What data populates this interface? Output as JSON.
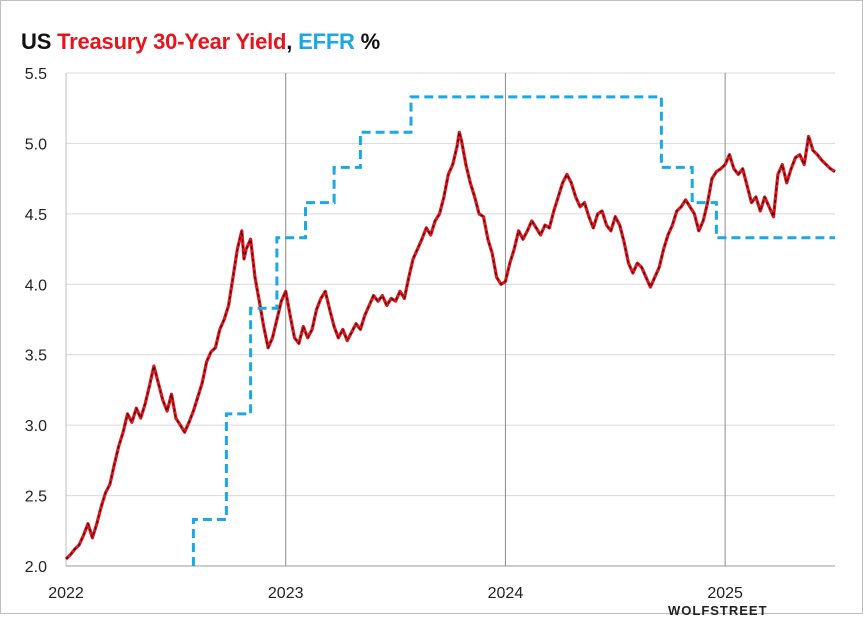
{
  "title": {
    "part1": "US ",
    "part2": "Treasury 30-Year Yield",
    "part3": ", ",
    "part4": "EFFR",
    "part5": " %",
    "color_black": "#111111",
    "color_red": "#e8141c",
    "color_blue": "#1aa9e6"
  },
  "watermark": "WOLFSTREET",
  "chart_data": {
    "type": "line",
    "title": "US Treasury 30-Year Yield, EFFR %",
    "xlabel": "",
    "ylabel": "",
    "xlim": [
      2022.0,
      2025.5
    ],
    "ylim": [
      2.0,
      5.5
    ],
    "y_ticks": [
      "2.0",
      "2.5",
      "3.0",
      "3.5",
      "4.0",
      "4.5",
      "5.0",
      "5.5"
    ],
    "x_ticks": [
      {
        "label": "2022",
        "x": 2022.0
      },
      {
        "label": "2023",
        "x": 2023.0
      },
      {
        "label": "2024",
        "x": 2024.0
      },
      {
        "label": "2025",
        "x": 2025.0
      }
    ],
    "grid": {
      "horizontal": true,
      "vertical_year_lines": true
    },
    "series": [
      {
        "name": "Treasury 30-Year Yield",
        "style": "solid-red-with-black-dash",
        "color": "#e8141c",
        "points": [
          [
            2022.0,
            2.05
          ],
          [
            2022.02,
            2.08
          ],
          [
            2022.04,
            2.12
          ],
          [
            2022.06,
            2.15
          ],
          [
            2022.08,
            2.22
          ],
          [
            2022.1,
            2.3
          ],
          [
            2022.12,
            2.2
          ],
          [
            2022.14,
            2.3
          ],
          [
            2022.16,
            2.42
          ],
          [
            2022.18,
            2.52
          ],
          [
            2022.2,
            2.58
          ],
          [
            2022.22,
            2.72
          ],
          [
            2022.24,
            2.85
          ],
          [
            2022.26,
            2.95
          ],
          [
            2022.28,
            3.08
          ],
          [
            2022.3,
            3.02
          ],
          [
            2022.32,
            3.12
          ],
          [
            2022.34,
            3.05
          ],
          [
            2022.36,
            3.15
          ],
          [
            2022.38,
            3.28
          ],
          [
            2022.4,
            3.42
          ],
          [
            2022.42,
            3.3
          ],
          [
            2022.44,
            3.18
          ],
          [
            2022.46,
            3.1
          ],
          [
            2022.48,
            3.22
          ],
          [
            2022.5,
            3.05
          ],
          [
            2022.52,
            3.0
          ],
          [
            2022.54,
            2.95
          ],
          [
            2022.56,
            3.02
          ],
          [
            2022.58,
            3.1
          ],
          [
            2022.6,
            3.2
          ],
          [
            2022.62,
            3.3
          ],
          [
            2022.64,
            3.45
          ],
          [
            2022.66,
            3.52
          ],
          [
            2022.68,
            3.55
          ],
          [
            2022.7,
            3.68
          ],
          [
            2022.72,
            3.75
          ],
          [
            2022.74,
            3.85
          ],
          [
            2022.76,
            4.05
          ],
          [
            2022.78,
            4.25
          ],
          [
            2022.8,
            4.38
          ],
          [
            2022.81,
            4.18
          ],
          [
            2022.82,
            4.25
          ],
          [
            2022.84,
            4.32
          ],
          [
            2022.86,
            4.05
          ],
          [
            2022.88,
            3.88
          ],
          [
            2022.9,
            3.7
          ],
          [
            2022.92,
            3.55
          ],
          [
            2022.94,
            3.62
          ],
          [
            2022.96,
            3.75
          ],
          [
            2022.98,
            3.88
          ],
          [
            2023.0,
            3.95
          ],
          [
            2023.02,
            3.78
          ],
          [
            2023.04,
            3.62
          ],
          [
            2023.06,
            3.58
          ],
          [
            2023.08,
            3.7
          ],
          [
            2023.1,
            3.62
          ],
          [
            2023.12,
            3.68
          ],
          [
            2023.14,
            3.82
          ],
          [
            2023.16,
            3.9
          ],
          [
            2023.18,
            3.95
          ],
          [
            2023.2,
            3.82
          ],
          [
            2023.22,
            3.7
          ],
          [
            2023.24,
            3.62
          ],
          [
            2023.26,
            3.68
          ],
          [
            2023.28,
            3.6
          ],
          [
            2023.3,
            3.66
          ],
          [
            2023.32,
            3.72
          ],
          [
            2023.34,
            3.68
          ],
          [
            2023.36,
            3.78
          ],
          [
            2023.38,
            3.85
          ],
          [
            2023.4,
            3.92
          ],
          [
            2023.42,
            3.88
          ],
          [
            2023.44,
            3.92
          ],
          [
            2023.46,
            3.85
          ],
          [
            2023.48,
            3.9
          ],
          [
            2023.5,
            3.88
          ],
          [
            2023.52,
            3.95
          ],
          [
            2023.54,
            3.9
          ],
          [
            2023.56,
            4.05
          ],
          [
            2023.58,
            4.18
          ],
          [
            2023.6,
            4.25
          ],
          [
            2023.62,
            4.32
          ],
          [
            2023.64,
            4.4
          ],
          [
            2023.66,
            4.35
          ],
          [
            2023.68,
            4.45
          ],
          [
            2023.7,
            4.5
          ],
          [
            2023.72,
            4.62
          ],
          [
            2023.74,
            4.78
          ],
          [
            2023.76,
            4.85
          ],
          [
            2023.78,
            4.98
          ],
          [
            2023.79,
            5.08
          ],
          [
            2023.8,
            5.02
          ],
          [
            2023.82,
            4.85
          ],
          [
            2023.84,
            4.72
          ],
          [
            2023.86,
            4.62
          ],
          [
            2023.88,
            4.5
          ],
          [
            2023.9,
            4.48
          ],
          [
            2023.92,
            4.32
          ],
          [
            2023.94,
            4.22
          ],
          [
            2023.96,
            4.05
          ],
          [
            2023.98,
            4.0
          ],
          [
            2024.0,
            4.02
          ],
          [
            2024.02,
            4.15
          ],
          [
            2024.04,
            4.25
          ],
          [
            2024.06,
            4.38
          ],
          [
            2024.08,
            4.32
          ],
          [
            2024.1,
            4.38
          ],
          [
            2024.12,
            4.45
          ],
          [
            2024.14,
            4.4
          ],
          [
            2024.16,
            4.35
          ],
          [
            2024.18,
            4.42
          ],
          [
            2024.2,
            4.4
          ],
          [
            2024.22,
            4.52
          ],
          [
            2024.24,
            4.62
          ],
          [
            2024.26,
            4.72
          ],
          [
            2024.28,
            4.78
          ],
          [
            2024.3,
            4.72
          ],
          [
            2024.32,
            4.62
          ],
          [
            2024.34,
            4.55
          ],
          [
            2024.36,
            4.58
          ],
          [
            2024.38,
            4.48
          ],
          [
            2024.4,
            4.4
          ],
          [
            2024.42,
            4.5
          ],
          [
            2024.44,
            4.52
          ],
          [
            2024.46,
            4.42
          ],
          [
            2024.48,
            4.38
          ],
          [
            2024.5,
            4.48
          ],
          [
            2024.52,
            4.42
          ],
          [
            2024.54,
            4.3
          ],
          [
            2024.56,
            4.15
          ],
          [
            2024.58,
            4.08
          ],
          [
            2024.6,
            4.15
          ],
          [
            2024.62,
            4.12
          ],
          [
            2024.64,
            4.05
          ],
          [
            2024.66,
            3.98
          ],
          [
            2024.68,
            4.05
          ],
          [
            2024.7,
            4.12
          ],
          [
            2024.72,
            4.25
          ],
          [
            2024.74,
            4.35
          ],
          [
            2024.76,
            4.42
          ],
          [
            2024.78,
            4.52
          ],
          [
            2024.8,
            4.55
          ],
          [
            2024.82,
            4.6
          ],
          [
            2024.84,
            4.55
          ],
          [
            2024.86,
            4.5
          ],
          [
            2024.88,
            4.38
          ],
          [
            2024.9,
            4.45
          ],
          [
            2024.92,
            4.58
          ],
          [
            2024.94,
            4.75
          ],
          [
            2024.96,
            4.8
          ],
          [
            2024.98,
            4.82
          ],
          [
            2025.0,
            4.85
          ],
          [
            2025.02,
            4.92
          ],
          [
            2025.04,
            4.82
          ],
          [
            2025.06,
            4.78
          ],
          [
            2025.08,
            4.82
          ],
          [
            2025.1,
            4.7
          ],
          [
            2025.12,
            4.58
          ],
          [
            2025.14,
            4.62
          ],
          [
            2025.16,
            4.52
          ],
          [
            2025.18,
            4.62
          ],
          [
            2025.2,
            4.55
          ],
          [
            2025.22,
            4.48
          ],
          [
            2025.24,
            4.78
          ],
          [
            2025.26,
            4.85
          ],
          [
            2025.28,
            4.72
          ],
          [
            2025.3,
            4.82
          ],
          [
            2025.32,
            4.9
          ],
          [
            2025.34,
            4.92
          ],
          [
            2025.36,
            4.85
          ],
          [
            2025.38,
            5.05
          ],
          [
            2025.4,
            4.95
          ],
          [
            2025.42,
            4.92
          ],
          [
            2025.44,
            4.88
          ],
          [
            2025.46,
            4.85
          ],
          [
            2025.48,
            4.82
          ],
          [
            2025.5,
            4.8
          ]
        ]
      },
      {
        "name": "EFFR",
        "style": "dashed",
        "color": "#1aa9e6",
        "points": [
          [
            2022.58,
            2.0
          ],
          [
            2022.58,
            2.33
          ],
          [
            2022.73,
            2.33
          ],
          [
            2022.73,
            3.08
          ],
          [
            2022.84,
            3.08
          ],
          [
            2022.84,
            3.83
          ],
          [
            2022.96,
            3.83
          ],
          [
            2022.96,
            4.33
          ],
          [
            2023.09,
            4.33
          ],
          [
            2023.09,
            4.58
          ],
          [
            2023.22,
            4.58
          ],
          [
            2023.22,
            4.83
          ],
          [
            2023.34,
            4.83
          ],
          [
            2023.34,
            5.08
          ],
          [
            2023.57,
            5.08
          ],
          [
            2023.57,
            5.33
          ],
          [
            2024.71,
            5.33
          ],
          [
            2024.71,
            4.83
          ],
          [
            2024.85,
            4.83
          ],
          [
            2024.85,
            4.58
          ],
          [
            2024.96,
            4.58
          ],
          [
            2024.96,
            4.33
          ],
          [
            2025.5,
            4.33
          ]
        ]
      }
    ]
  }
}
